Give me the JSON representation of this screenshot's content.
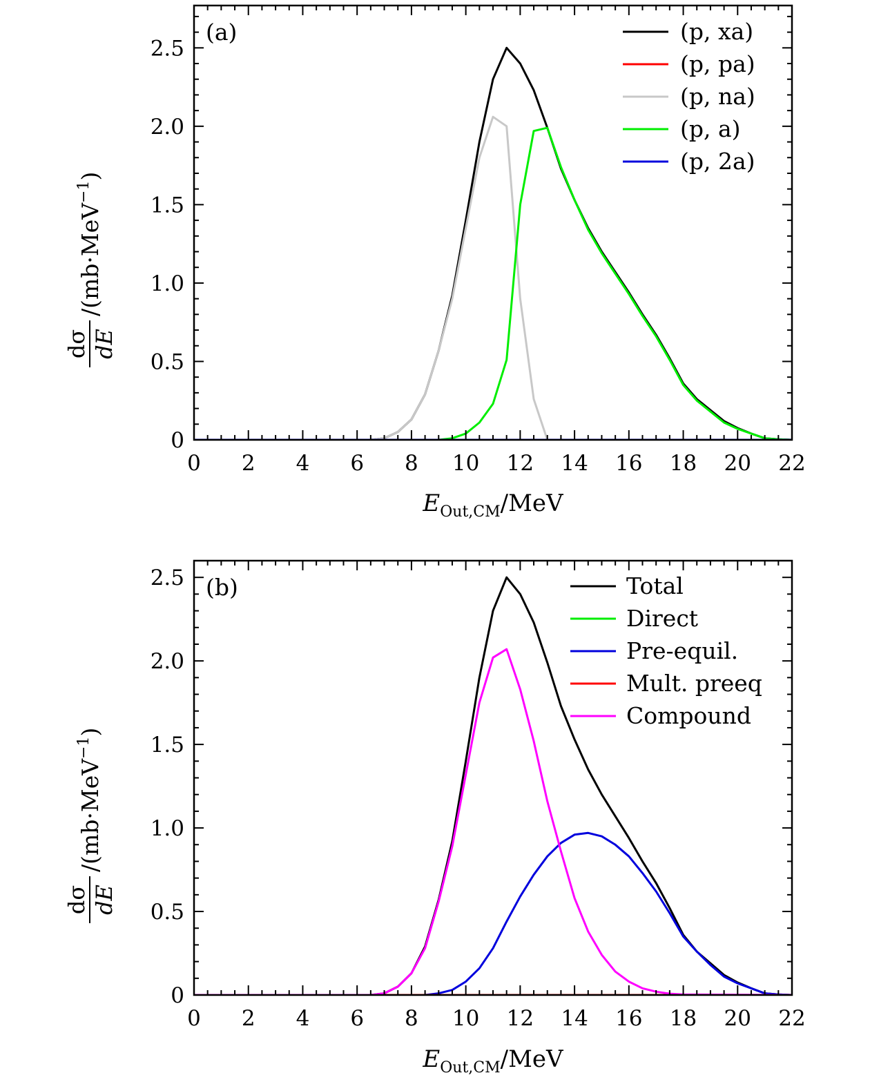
{
  "colors": {
    "black": "#000000",
    "red": "#ff0000",
    "gray": "#c8c8c8",
    "green": "#00ee00",
    "blue": "#0000dd",
    "magenta": "#ff00ff"
  },
  "chart_data": [
    {
      "type": "line",
      "panel_label": "(a)",
      "xlabel": {
        "main": "E",
        "sub": "Out,CM",
        "unit": "/MeV"
      },
      "ylabel": {
        "num": "dσ",
        "den": "dE",
        "unit": "/(mb·MeV",
        "sup": "−1",
        "close": ")"
      },
      "xlim": [
        0,
        22
      ],
      "ylim": [
        0,
        2.77
      ],
      "xticks": [
        0,
        2,
        4,
        6,
        8,
        10,
        12,
        14,
        16,
        18,
        20,
        22
      ],
      "xtick_labels": [
        "0",
        "2",
        "4",
        "6",
        "8",
        "10",
        "12",
        "14",
        "16",
        "18",
        "20",
        "22"
      ],
      "yticks": [
        0,
        0.5,
        1.0,
        1.5,
        2.0,
        2.5
      ],
      "ytick_labels": [
        "0",
        "0.5",
        "1.0",
        "1.5",
        "2.0",
        "2.5"
      ],
      "legend_position": "top-right",
      "series": [
        {
          "name": "(p, xa)",
          "color": "black",
          "x": [
            0,
            6.5,
            7,
            7.5,
            8,
            8.5,
            9,
            9.5,
            10,
            10.5,
            11,
            11.5,
            12,
            12.5,
            13,
            13.5,
            14,
            14.5,
            15,
            15.5,
            16,
            16.5,
            17,
            17.5,
            18,
            18.5,
            19,
            19.5,
            20,
            20.5,
            21,
            21.5,
            22
          ],
          "y": [
            0,
            0,
            0.01,
            0.05,
            0.13,
            0.29,
            0.57,
            0.92,
            1.4,
            1.9,
            2.3,
            2.5,
            2.4,
            2.23,
            1.99,
            1.73,
            1.53,
            1.35,
            1.2,
            1.07,
            0.94,
            0.8,
            0.67,
            0.52,
            0.36,
            0.26,
            0.19,
            0.12,
            0.075,
            0.04,
            0.01,
            0.003,
            0
          ]
        },
        {
          "name": "(p, pa)",
          "color": "red",
          "x": [
            0,
            22
          ],
          "y": [
            0,
            0
          ]
        },
        {
          "name": "(p, na)",
          "color": "gray",
          "x": [
            0,
            6.5,
            7,
            7.5,
            8,
            8.5,
            9,
            9.5,
            10,
            10.5,
            11,
            11.5,
            12,
            12.5,
            13,
            22
          ],
          "y": [
            0,
            0,
            0.01,
            0.05,
            0.13,
            0.29,
            0.57,
            0.9,
            1.35,
            1.8,
            2.06,
            2.0,
            0.9,
            0.26,
            0,
            0
          ]
        },
        {
          "name": "(p, a)",
          "color": "green",
          "x": [
            0,
            9,
            9.5,
            10,
            10.5,
            11,
            11.5,
            12,
            12.5,
            13,
            13.5,
            14,
            14.5,
            15,
            15.5,
            16,
            16.5,
            17,
            17.5,
            18,
            18.5,
            19,
            19.5,
            20,
            20.5,
            21,
            21.5,
            22
          ],
          "y": [
            0,
            0,
            0.01,
            0.04,
            0.11,
            0.23,
            0.51,
            1.5,
            1.97,
            1.99,
            1.74,
            1.53,
            1.34,
            1.19,
            1.06,
            0.93,
            0.79,
            0.66,
            0.51,
            0.35,
            0.25,
            0.18,
            0.11,
            0.07,
            0.04,
            0.01,
            0.003,
            0
          ]
        },
        {
          "name": "(p, 2a)",
          "color": "blue",
          "x": [
            0,
            22
          ],
          "y": [
            0,
            0
          ]
        }
      ]
    },
    {
      "type": "line",
      "panel_label": "(b)",
      "xlabel": {
        "main": "E",
        "sub": "Out,CM",
        "unit": "/MeV"
      },
      "ylabel": {
        "num": "dσ",
        "den": "dE",
        "unit": "/(mb·MeV",
        "sup": "−1",
        "close": ")"
      },
      "xlim": [
        0,
        22
      ],
      "ylim": [
        0,
        2.6
      ],
      "xticks": [
        0,
        2,
        4,
        6,
        8,
        10,
        12,
        14,
        16,
        18,
        20,
        22
      ],
      "xtick_labels": [
        "0",
        "2",
        "4",
        "6",
        "8",
        "10",
        "12",
        "14",
        "16",
        "18",
        "20",
        "22"
      ],
      "yticks": [
        0,
        0.5,
        1.0,
        1.5,
        2.0,
        2.5
      ],
      "ytick_labels": [
        "0",
        "0.5",
        "1.0",
        "1.5",
        "2.0",
        "2.5"
      ],
      "legend_position": "top-right",
      "series": [
        {
          "name": "Total",
          "color": "black",
          "x": [
            0,
            6.5,
            7,
            7.5,
            8,
            8.5,
            9,
            9.5,
            10,
            10.5,
            11,
            11.5,
            12,
            12.5,
            13,
            13.5,
            14,
            14.5,
            15,
            15.5,
            16,
            16.5,
            17,
            17.5,
            18,
            18.5,
            19,
            19.5,
            20,
            20.5,
            21,
            21.5,
            22
          ],
          "y": [
            0,
            0,
            0.01,
            0.05,
            0.13,
            0.29,
            0.57,
            0.92,
            1.4,
            1.9,
            2.3,
            2.5,
            2.4,
            2.23,
            1.99,
            1.73,
            1.53,
            1.35,
            1.2,
            1.07,
            0.94,
            0.8,
            0.67,
            0.52,
            0.36,
            0.26,
            0.19,
            0.12,
            0.075,
            0.04,
            0.01,
            0.003,
            0
          ]
        },
        {
          "name": "Direct",
          "color": "green",
          "x": [
            0,
            22
          ],
          "y": [
            0,
            0
          ]
        },
        {
          "name": "Pre-equil.",
          "color": "blue",
          "x": [
            0,
            8.5,
            9,
            9.5,
            10,
            10.5,
            11,
            11.5,
            12,
            12.5,
            13,
            13.5,
            14,
            14.5,
            15,
            15.5,
            16,
            16.5,
            17,
            17.5,
            18,
            18.5,
            19,
            19.5,
            20,
            20.5,
            21,
            21.5,
            22
          ],
          "y": [
            0,
            0,
            0.01,
            0.03,
            0.08,
            0.16,
            0.28,
            0.44,
            0.59,
            0.72,
            0.83,
            0.91,
            0.96,
            0.97,
            0.95,
            0.9,
            0.83,
            0.73,
            0.62,
            0.49,
            0.35,
            0.26,
            0.18,
            0.11,
            0.07,
            0.04,
            0.01,
            0.003,
            0
          ]
        },
        {
          "name": "Mult. preeq",
          "color": "red",
          "x": [
            0,
            22
          ],
          "y": [
            0,
            0
          ]
        },
        {
          "name": "Compound",
          "color": "magenta",
          "x": [
            0,
            6.5,
            7,
            7.5,
            8,
            8.5,
            9,
            9.5,
            10,
            10.5,
            11,
            11.5,
            12,
            12.5,
            13,
            13.5,
            14,
            14.5,
            15,
            15.5,
            16,
            16.5,
            17,
            17.5,
            18,
            22
          ],
          "y": [
            0,
            0,
            0.01,
            0.05,
            0.13,
            0.28,
            0.56,
            0.89,
            1.32,
            1.75,
            2.02,
            2.07,
            1.83,
            1.52,
            1.16,
            0.86,
            0.58,
            0.38,
            0.24,
            0.14,
            0.08,
            0.04,
            0.02,
            0.008,
            0.003,
            0
          ]
        }
      ]
    }
  ]
}
